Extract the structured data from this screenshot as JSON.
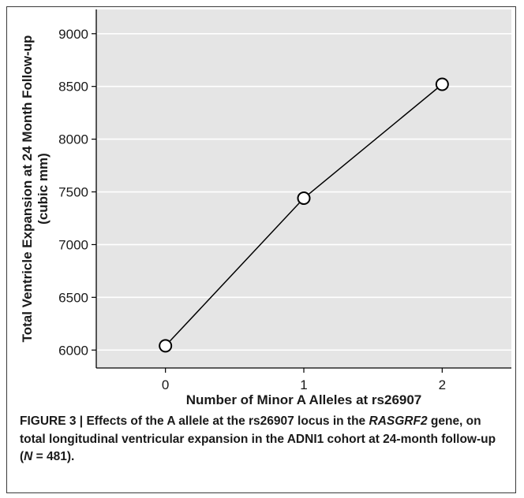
{
  "chart_data": {
    "type": "line",
    "x": [
      0,
      1,
      2
    ],
    "y": [
      6040,
      7440,
      8520
    ],
    "xticks": [
      "0",
      "1",
      "2"
    ],
    "yticks": [
      6000,
      6500,
      7000,
      7500,
      8000,
      8500,
      9000
    ],
    "xlabel": "Number of Minor A Alleles at rs26907",
    "ylabel": [
      "Total Ventricle Expansion at 24 Month Follow-up",
      "(cubic mm)"
    ],
    "xlim": [
      -0.5,
      2.5
    ],
    "ylim": [
      5830,
      9230
    ],
    "grid": "horizontal",
    "marker": "open-circle",
    "colors": {
      "panel": "#e5e5e5",
      "grid": "#ffffff",
      "line": "#000000",
      "marker_fill": "#ffffff"
    }
  },
  "caption": {
    "label": "FIGURE 3 | ",
    "text_1": "Effects of the A allele at the rs26907 locus in the ",
    "gene": "RASGRF2",
    "text_2": " gene, on total longitudinal ventricular expansion in the ADNI1 cohort at 24-month follow-up (",
    "n_symbol": "N",
    "text_3": " = 481)."
  }
}
